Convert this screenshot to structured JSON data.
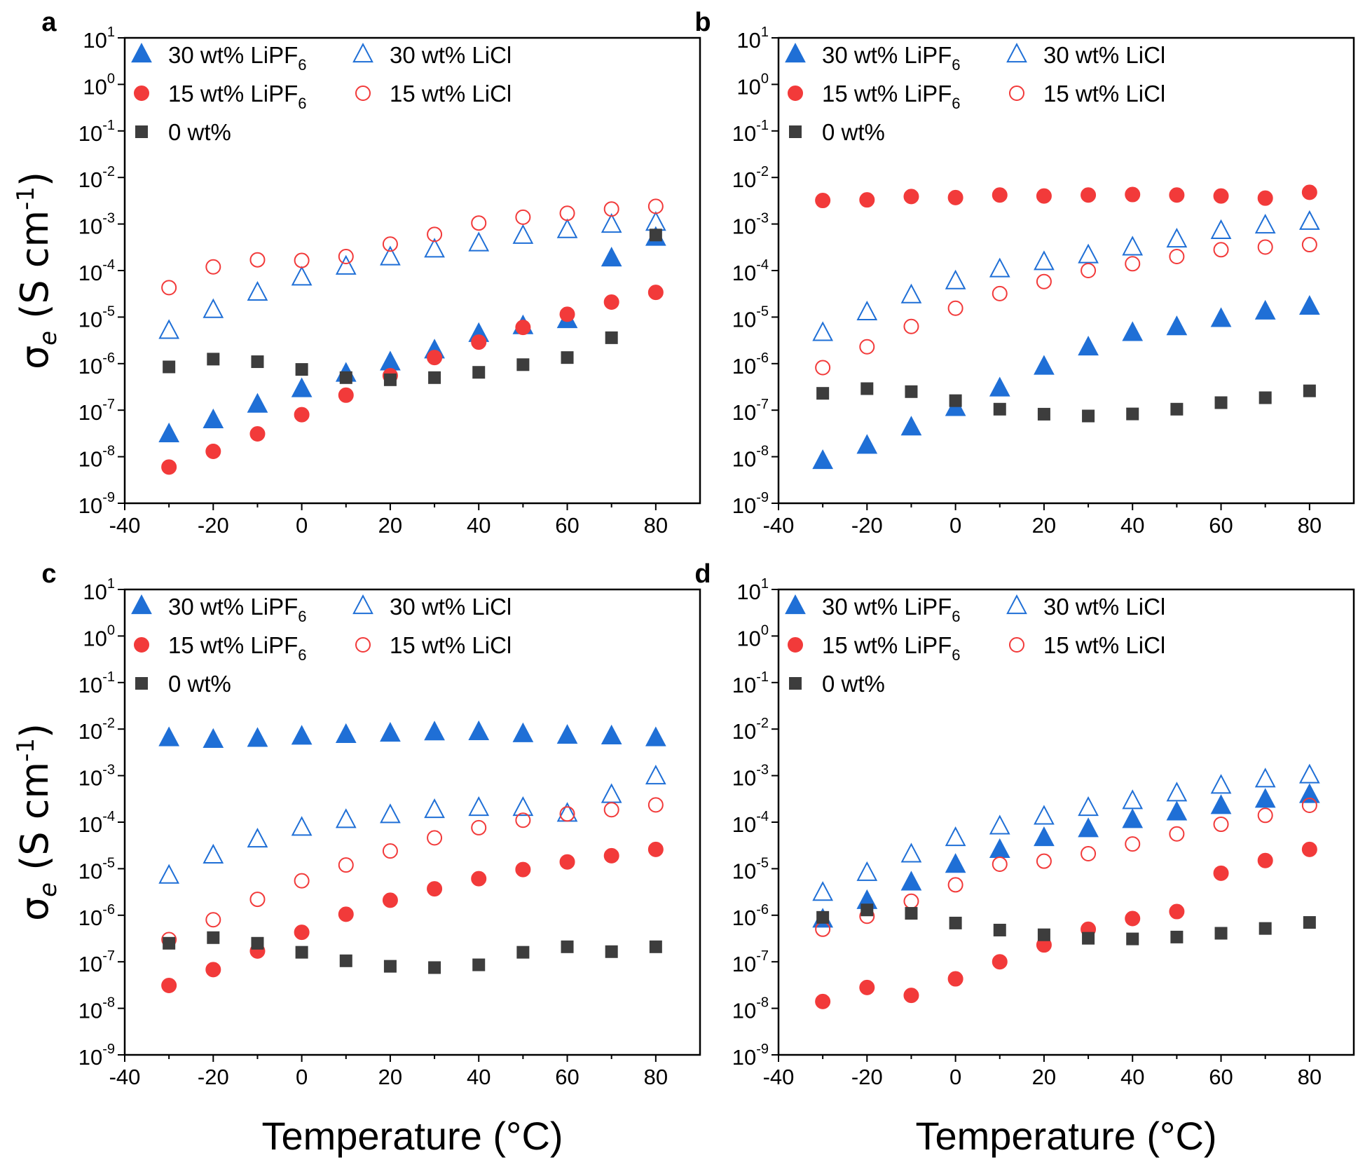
{
  "colors": {
    "blue": "#1f6fd6",
    "red": "#f23a3a",
    "gray": "#3d3d3d",
    "axis": "#000000"
  },
  "chart_data": [
    {
      "panel": "a",
      "type": "scatter",
      "x_label": "Temperature (°C)",
      "y_label": "σe (S cm-1)",
      "xlim": [
        -40,
        90
      ],
      "ylim": [
        1e-09,
        10
      ],
      "yscale": "log",
      "x_ticks": [
        -40,
        -20,
        0,
        20,
        40,
        60,
        80
      ],
      "y_ticks": [
        {
          "base": "10",
          "exp": "1"
        },
        {
          "base": "10",
          "exp": "0"
        },
        {
          "base": "10",
          "exp": "-1"
        },
        {
          "base": "10",
          "exp": "-2"
        },
        {
          "base": "10",
          "exp": "-3"
        },
        {
          "base": "10",
          "exp": "-4"
        },
        {
          "base": "10",
          "exp": "-5"
        },
        {
          "base": "10",
          "exp": "-6"
        },
        {
          "base": "10",
          "exp": "-7"
        },
        {
          "base": "10",
          "exp": "-8"
        },
        {
          "base": "10",
          "exp": "-9"
        }
      ],
      "legend_position": "top-left",
      "x": [
        -30,
        -20,
        -10,
        0,
        10,
        20,
        30,
        40,
        50,
        60,
        70,
        80
      ],
      "series": [
        {
          "name": "30 wt% LiPF6",
          "label_main": "30 wt% LiPF",
          "label_sub": "6",
          "marker": "triangle",
          "fill": true,
          "color": "blue",
          "values": [
            3e-08,
            6e-08,
            1.3e-07,
            2.8e-07,
            6e-07,
            1.05e-06,
            1.9e-06,
            4.3e-06,
            6.3e-06,
            8.5e-06,
            0.00018,
            0.0005
          ]
        },
        {
          "name": "30 wt% LiCl",
          "label_main": "30 wt% LiCl",
          "label_sub": "",
          "marker": "triangle",
          "fill": false,
          "color": "blue",
          "values": [
            5e-06,
            1.4e-05,
            3.3e-05,
            7e-05,
            0.00012,
            0.00019,
            0.00028,
            0.00038,
            0.00055,
            0.00073,
            0.00095,
            0.00105
          ]
        },
        {
          "name": "15 wt% LiPF6",
          "label_main": "15 wt% LiPF",
          "label_sub": "6",
          "marker": "circle",
          "fill": true,
          "color": "red",
          "values": [
            6e-09,
            1.3e-08,
            3.1e-08,
            8e-08,
            2.1e-07,
            5.5e-07,
            1.35e-06,
            2.9e-06,
            6e-06,
            1.15e-05,
            2.1e-05,
            3.4e-05
          ]
        },
        {
          "name": "15 wt% LiCl",
          "label_main": "15 wt% LiCl",
          "label_sub": "",
          "marker": "circle",
          "fill": false,
          "color": "red",
          "values": [
            4.3e-05,
            0.00012,
            0.00017,
            0.000165,
            0.0002,
            0.00037,
            0.0006,
            0.00105,
            0.0014,
            0.0017,
            0.0021,
            0.0024
          ]
        },
        {
          "name": "0 wt%",
          "label_main": "0 wt%",
          "label_sub": "",
          "marker": "square",
          "fill": true,
          "color": "gray",
          "values": [
            8.5e-07,
            1.25e-06,
            1.1e-06,
            7.5e-07,
            5e-07,
            4.5e-07,
            5e-07,
            6.5e-07,
            9.5e-07,
            1.35e-06,
            3.6e-06,
            0.00058
          ]
        }
      ]
    },
    {
      "panel": "b",
      "type": "scatter",
      "x_label": "Temperature (°C)",
      "y_label": "",
      "xlim": [
        -40,
        90
      ],
      "ylim": [
        1e-09,
        10
      ],
      "yscale": "log",
      "x_ticks": [
        -40,
        -20,
        0,
        20,
        40,
        60,
        80
      ],
      "y_ticks": [
        {
          "base": "10",
          "exp": "1"
        },
        {
          "base": "10",
          "exp": "0"
        },
        {
          "base": "10",
          "exp": "-1"
        },
        {
          "base": "10",
          "exp": "-2"
        },
        {
          "base": "10",
          "exp": "-3"
        },
        {
          "base": "10",
          "exp": "-4"
        },
        {
          "base": "10",
          "exp": "-5"
        },
        {
          "base": "10",
          "exp": "-6"
        },
        {
          "base": "10",
          "exp": "-7"
        },
        {
          "base": "10",
          "exp": "-8"
        },
        {
          "base": "10",
          "exp": "-9"
        }
      ],
      "legend_position": "top-left",
      "x": [
        -30,
        -20,
        -10,
        0,
        10,
        20,
        30,
        40,
        50,
        60,
        70,
        80
      ],
      "series": [
        {
          "name": "30 wt% LiPF6",
          "label_main": "30 wt% LiPF",
          "label_sub": "6",
          "marker": "triangle",
          "fill": true,
          "color": "blue",
          "values": [
            8e-09,
            1.7e-08,
            4.2e-08,
            1.1e-07,
            2.9e-07,
            8.5e-07,
            2.2e-06,
            4.5e-06,
            6e-06,
            9e-06,
            1.3e-05,
            1.65e-05
          ]
        },
        {
          "name": "30 wt% LiCl",
          "label_main": "30 wt% LiCl",
          "label_sub": "",
          "marker": "triangle",
          "fill": false,
          "color": "blue",
          "values": [
            4.5e-06,
            1.25e-05,
            2.9e-05,
            5.8e-05,
            0.000105,
            0.00015,
            0.00021,
            0.00031,
            0.00046,
            0.0007,
            0.00092,
            0.0011
          ]
        },
        {
          "name": "15 wt% LiPF6",
          "label_main": "15 wt% LiPF",
          "label_sub": "6",
          "marker": "circle",
          "fill": true,
          "color": "red",
          "values": [
            0.0032,
            0.0033,
            0.0039,
            0.0037,
            0.0042,
            0.004,
            0.0042,
            0.0043,
            0.0042,
            0.004,
            0.0036,
            0.0048
          ]
        },
        {
          "name": "15 wt% LiCl",
          "label_main": "15 wt% LiCl",
          "label_sub": "",
          "marker": "circle",
          "fill": false,
          "color": "red",
          "values": [
            8.2e-07,
            2.3e-06,
            6.3e-06,
            1.55e-05,
            3.2e-05,
            5.8e-05,
            0.0001,
            0.00014,
            0.0002,
            0.00028,
            0.00032,
            0.00036
          ]
        },
        {
          "name": "0 wt%",
          "label_main": "0 wt%",
          "label_sub": "",
          "marker": "square",
          "fill": true,
          "color": "gray",
          "values": [
            2.3e-07,
            2.9e-07,
            2.5e-07,
            1.6e-07,
            1.05e-07,
            8.2e-08,
            7.5e-08,
            8.3e-08,
            1.05e-07,
            1.45e-07,
            1.85e-07,
            2.6e-07
          ]
        }
      ]
    },
    {
      "panel": "c",
      "type": "scatter",
      "x_label": "Temperature (°C)",
      "y_label": "σe (S cm-1)",
      "xlim": [
        -40,
        90
      ],
      "ylim": [
        1e-09,
        10
      ],
      "yscale": "log",
      "x_ticks": [
        -40,
        -20,
        0,
        20,
        40,
        60,
        80
      ],
      "y_ticks": [
        {
          "base": "10",
          "exp": "1"
        },
        {
          "base": "10",
          "exp": "0"
        },
        {
          "base": "10",
          "exp": "-1"
        },
        {
          "base": "10",
          "exp": "-2"
        },
        {
          "base": "10",
          "exp": "-3"
        },
        {
          "base": "10",
          "exp": "-4"
        },
        {
          "base": "10",
          "exp": "-5"
        },
        {
          "base": "10",
          "exp": "-6"
        },
        {
          "base": "10",
          "exp": "-7"
        },
        {
          "base": "10",
          "exp": "-8"
        },
        {
          "base": "10",
          "exp": "-9"
        }
      ],
      "legend_position": "top-left",
      "x": [
        -30,
        -20,
        -10,
        0,
        10,
        20,
        30,
        40,
        50,
        60,
        70,
        80
      ],
      "series": [
        {
          "name": "30 wt% LiPF6",
          "label_main": "30 wt% LiPF",
          "label_sub": "6",
          "marker": "triangle",
          "fill": true,
          "color": "blue",
          "values": [
            0.0063,
            0.0058,
            0.0061,
            0.0068,
            0.0074,
            0.0079,
            0.0084,
            0.0085,
            0.0077,
            0.0071,
            0.0069,
            0.0063
          ]
        },
        {
          "name": "30 wt% LiCl",
          "label_main": "30 wt% LiCl",
          "label_sub": "",
          "marker": "triangle",
          "fill": false,
          "color": "blue",
          "values": [
            7e-06,
            1.9e-05,
            4.2e-05,
            7.5e-05,
            0.00011,
            0.00014,
            0.00018,
            0.0002,
            0.0002,
            0.00015,
            0.00038,
            0.00095
          ]
        },
        {
          "name": "15 wt% LiPF6",
          "label_main": "15 wt% LiPF",
          "label_sub": "6",
          "marker": "circle",
          "fill": true,
          "color": "red",
          "values": [
            3.1e-08,
            6.8e-08,
            1.7e-07,
            4.3e-07,
            1.05e-06,
            2.1e-06,
            3.7e-06,
            6.1e-06,
            9.6e-06,
            1.4e-05,
            1.9e-05,
            2.6e-05
          ]
        },
        {
          "name": "15 wt% LiCl",
          "label_main": "15 wt% LiCl",
          "label_sub": "",
          "marker": "circle",
          "fill": false,
          "color": "red",
          "values": [
            3e-07,
            8e-07,
            2.2e-06,
            5.5e-06,
            1.2e-05,
            2.4e-05,
            4.6e-05,
            7.6e-05,
            0.00011,
            0.00015,
            0.000185,
            0.000235
          ]
        },
        {
          "name": "0 wt%",
          "label_main": "0 wt%",
          "label_sub": "",
          "marker": "square",
          "fill": true,
          "color": "gray",
          "values": [
            2.5e-07,
            3.3e-07,
            2.5e-07,
            1.6e-07,
            1.05e-07,
            8e-08,
            7.5e-08,
            8.6e-08,
            1.6e-07,
            2.1e-07,
            1.65e-07,
            2.1e-07
          ]
        }
      ]
    },
    {
      "panel": "d",
      "type": "scatter",
      "x_label": "Temperature (°C)",
      "y_label": "",
      "xlim": [
        -40,
        90
      ],
      "ylim": [
        1e-09,
        10
      ],
      "yscale": "log",
      "x_ticks": [
        -40,
        -20,
        0,
        20,
        40,
        60,
        80
      ],
      "y_ticks": [
        {
          "base": "10",
          "exp": "1"
        },
        {
          "base": "10",
          "exp": "0"
        },
        {
          "base": "10",
          "exp": "-1"
        },
        {
          "base": "10",
          "exp": "-2"
        },
        {
          "base": "10",
          "exp": "-3"
        },
        {
          "base": "10",
          "exp": "-4"
        },
        {
          "base": "10",
          "exp": "-5"
        },
        {
          "base": "10",
          "exp": "-6"
        },
        {
          "base": "10",
          "exp": "-7"
        },
        {
          "base": "10",
          "exp": "-8"
        },
        {
          "base": "10",
          "exp": "-9"
        }
      ],
      "legend_position": "top-left",
      "x": [
        -30,
        -20,
        -10,
        0,
        10,
        20,
        30,
        40,
        50,
        60,
        70,
        80
      ],
      "series": [
        {
          "name": "30 wt% LiPF6",
          "label_main": "30 wt% LiPF",
          "label_sub": "6",
          "marker": "triangle",
          "fill": true,
          "color": "blue",
          "values": [
            8e-07,
            2e-06,
            5e-06,
            1.2e-05,
            2.5e-05,
            4.5e-05,
            7e-05,
            0.00011,
            0.00016,
            0.00022,
            0.0003,
            0.00038
          ]
        },
        {
          "name": "30 wt% LiCl",
          "label_main": "30 wt% LiCl",
          "label_sub": "",
          "marker": "triangle",
          "fill": false,
          "color": "blue",
          "values": [
            3e-06,
            8e-06,
            2e-05,
            4.5e-05,
            8e-05,
            0.00013,
            0.0002,
            0.00028,
            0.00041,
            0.0006,
            0.00082,
            0.001
          ]
        },
        {
          "name": "15 wt% LiPF6",
          "label_main": "15 wt% LiPF",
          "label_sub": "6",
          "marker": "circle",
          "fill": true,
          "color": "red",
          "values": [
            1.4e-08,
            2.8e-08,
            1.9e-08,
            4.3e-08,
            1e-07,
            2.3e-07,
            5e-07,
            8.5e-07,
            1.2e-06,
            8e-06,
            1.5e-05,
            2.6e-05
          ]
        },
        {
          "name": "15 wt% LiCl",
          "label_main": "15 wt% LiCl",
          "label_sub": "",
          "marker": "circle",
          "fill": false,
          "color": "red",
          "values": [
            5e-07,
            9.5e-07,
            2e-06,
            4.5e-06,
            1.25e-05,
            1.45e-05,
            2.1e-05,
            3.4e-05,
            5.6e-05,
            9e-05,
            0.00014,
            0.00023
          ]
        },
        {
          "name": "0 wt%",
          "label_main": "0 wt%",
          "label_sub": "",
          "marker": "square",
          "fill": true,
          "color": "gray",
          "values": [
            9e-07,
            1.3e-06,
            1.1e-06,
            6.8e-07,
            4.8e-07,
            3.8e-07,
            3.2e-07,
            3.1e-07,
            3.4e-07,
            4.1e-07,
            5.2e-07,
            7e-07
          ]
        }
      ]
    }
  ]
}
